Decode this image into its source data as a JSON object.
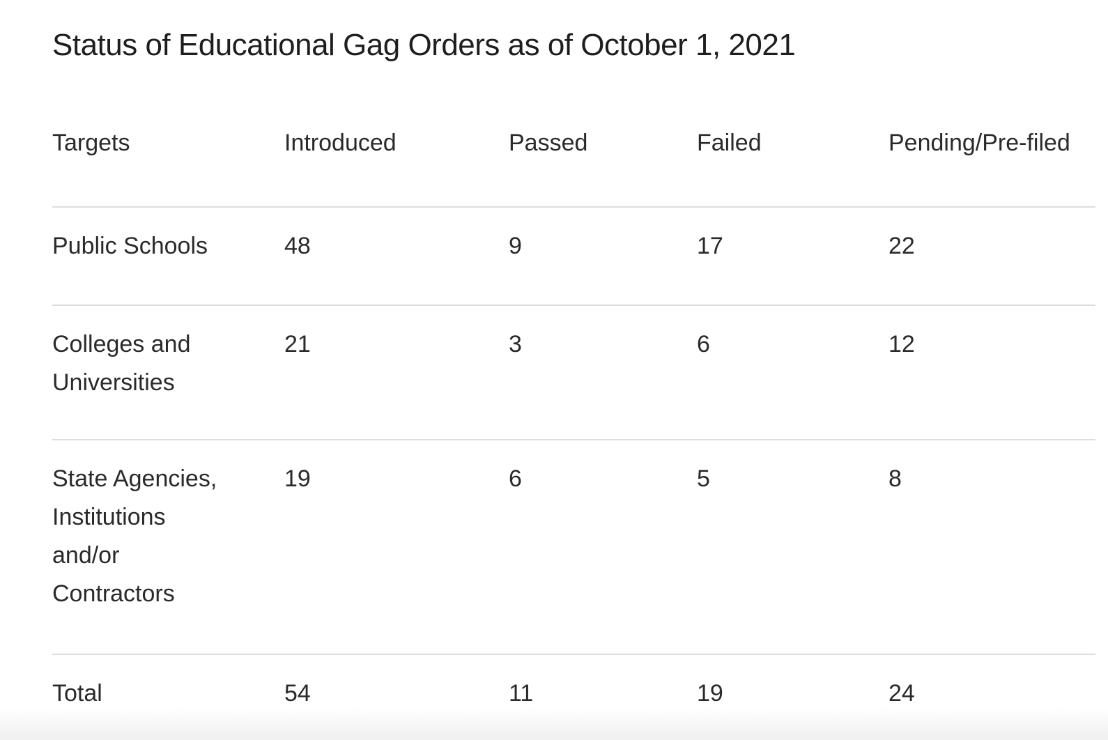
{
  "title": "Status of Educational Gag Orders as of October 1, 2021",
  "table": {
    "columns": [
      "Targets",
      "Introduced",
      "Passed",
      "Failed",
      "Pending/Pre-filed"
    ],
    "rows": [
      {
        "target": "Public Schools",
        "values": [
          "48",
          "9",
          "17",
          "22"
        ]
      },
      {
        "target": "Colleges and Universities",
        "values": [
          "21",
          "3",
          "6",
          "12"
        ]
      },
      {
        "target": "State Agencies, Institutions and/or Contractors",
        "values": [
          "19",
          "6",
          "5",
          "8"
        ]
      }
    ],
    "total_row": {
      "target": "Total",
      "values": [
        "54",
        "11",
        "19",
        "24"
      ]
    }
  },
  "colors": {
    "text": "#2a2a2a",
    "title": "#1e1e1e",
    "divider": "#dddddd",
    "background": "#ffffff",
    "bottom_fade": "#efeff0"
  },
  "chart_data": {
    "type": "table",
    "title": "Status of Educational Gag Orders as of October 1, 2021",
    "columns": [
      "Targets",
      "Introduced",
      "Passed",
      "Failed",
      "Pending/Pre-filed"
    ],
    "rows": [
      [
        "Public Schools",
        48,
        9,
        17,
        22
      ],
      [
        "Colleges and Universities",
        21,
        3,
        6,
        12
      ],
      [
        "State Agencies, Institutions and/or Contractors",
        19,
        6,
        5,
        8
      ],
      [
        "Total",
        54,
        11,
        19,
        24
      ]
    ],
    "layout_hints": {
      "grid": "horizontal row dividers only",
      "header_style": "plain text, no background",
      "alignment": "left-aligned columns"
    }
  }
}
